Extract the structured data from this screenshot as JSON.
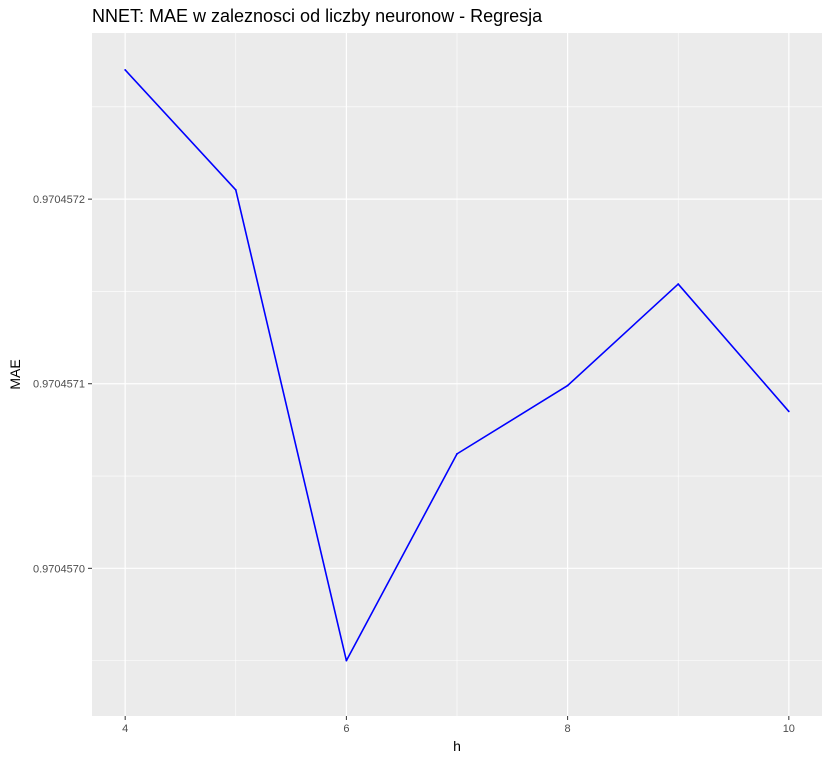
{
  "chart_data": {
    "type": "line",
    "title": "NNET: MAE w zaleznosci od liczby neuronow - Regresja",
    "xlabel": "h",
    "ylabel": "MAE",
    "x": [
      4,
      5,
      6,
      7,
      8,
      9,
      10
    ],
    "series": [
      {
        "values": [
          0.97045727,
          0.970457205,
          0.97045695,
          0.970457062,
          0.970457099,
          0.970457154,
          0.970457085
        ],
        "color": "#0000ff"
      }
    ],
    "x_ticks": [
      4,
      6,
      8,
      10
    ],
    "x_tick_labels": [
      "4",
      "6",
      "8",
      "10"
    ],
    "y_ticks": [
      0.970457,
      0.9704571,
      0.9704572
    ],
    "y_tick_labels": [
      "0.9704570",
      "0.9704571",
      "0.9704572"
    ],
    "xlim": [
      3.7,
      10.3
    ],
    "ylim": [
      0.97045692,
      0.97045729
    ],
    "grid": true,
    "panel_background": "#ebebeb",
    "grid_color": "#ffffff"
  }
}
